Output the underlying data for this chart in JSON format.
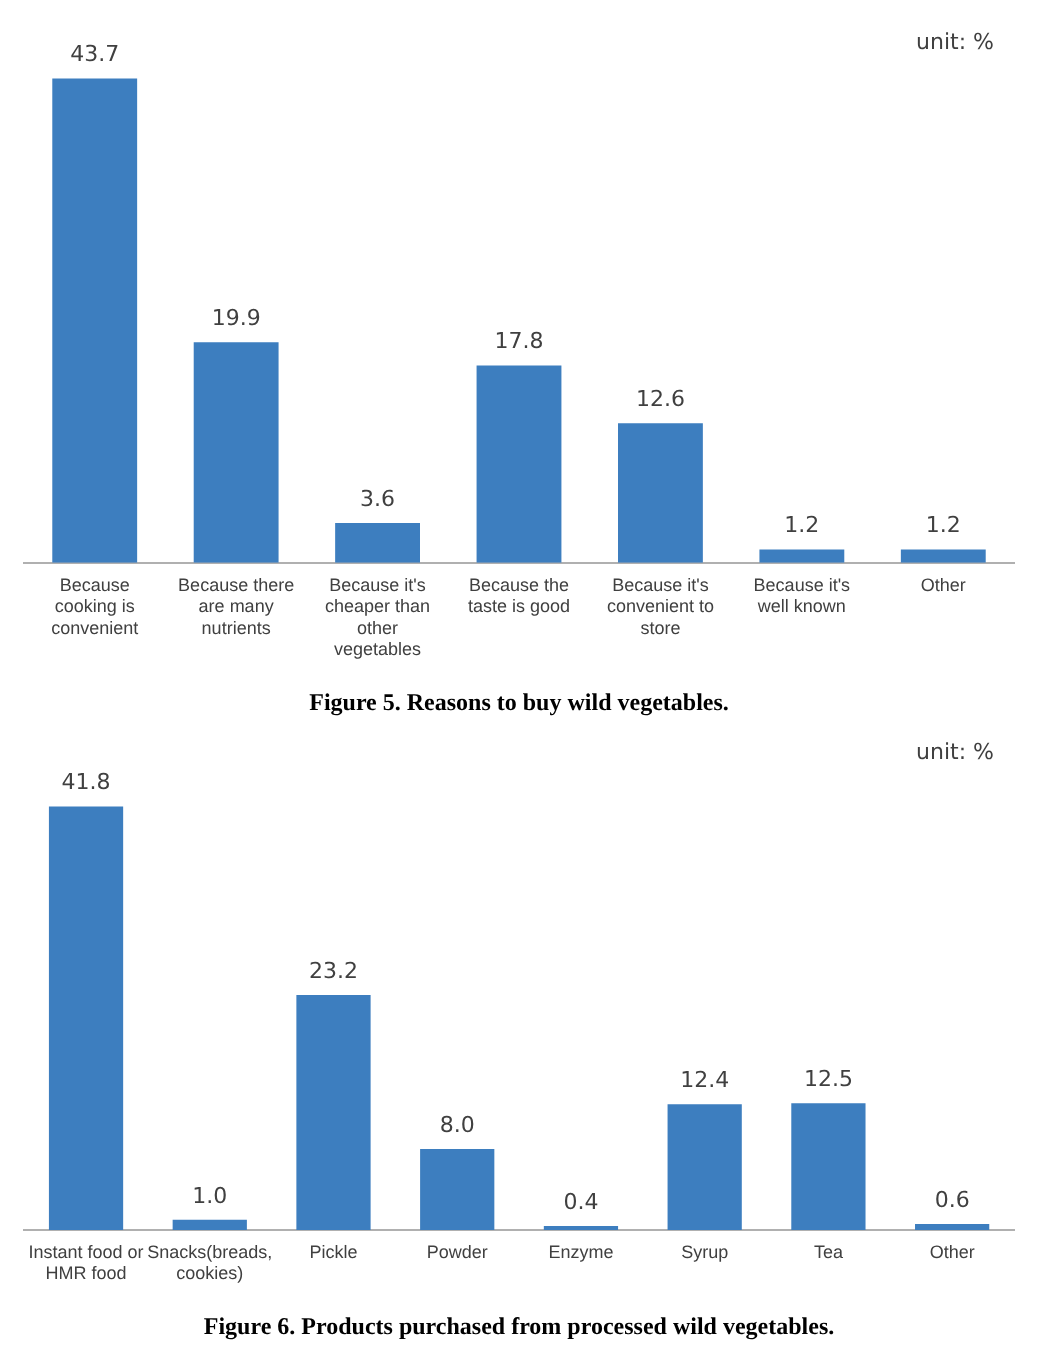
{
  "chart_data": [
    {
      "type": "bar",
      "title": "Figure 5. Reasons to buy wild vegetables.",
      "categories": [
        "Because cooking is convenient",
        "Because there are many nutrients",
        "Because it's cheaper than other vegetables",
        "Because the taste is good",
        "Because it's convenient to store",
        "Because it's well known",
        "Other"
      ],
      "values": [
        43.7,
        19.9,
        3.6,
        17.8,
        12.6,
        1.2,
        1.2
      ],
      "value_labels": [
        "43.7",
        "19.9",
        "3.6",
        "17.8",
        "12.6",
        "1.2",
        "1.2"
      ],
      "color": "#3d7ebf",
      "grid": false,
      "legend": false,
      "tick_labels": "x",
      "annotations": [
        "unit: %"
      ]
    },
    {
      "type": "bar",
      "title": "Figure 6. Products purchased from processed wild vegetables.",
      "categories": [
        "Instant food or HMR food",
        "Snacks(breads, cookies)",
        "Pickle",
        "Powder",
        "Enzyme",
        "Syrup",
        "Tea",
        "Other"
      ],
      "values": [
        41.8,
        1.0,
        23.2,
        8.0,
        0.4,
        12.4,
        12.5,
        0.6
      ],
      "value_labels": [
        "41.8",
        "1.0",
        "23.2",
        "8.0",
        "0.4",
        "12.4",
        "12.5",
        "0.6"
      ],
      "color": "#3d7ebf",
      "grid": false,
      "legend": false,
      "tick_labels": "x",
      "annotations": [
        "unit: %"
      ]
    }
  ]
}
